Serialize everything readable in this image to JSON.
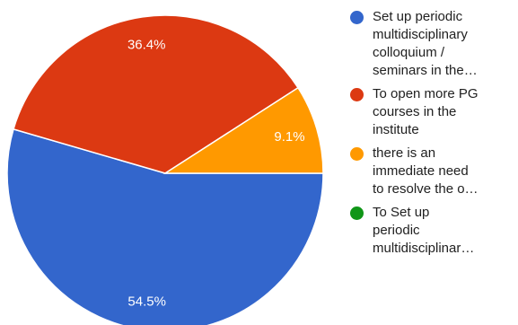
{
  "colors": {
    "series": [
      "#3366cc",
      "#dc3912",
      "#ff9900",
      "#109618"
    ],
    "label_text": "#ffffff",
    "legend_text": "#212121",
    "background": "#ffffff"
  },
  "legend": {
    "items": [
      {
        "lines": [
          "Set up periodic",
          "multidisciplinary",
          "colloquium /",
          "seminars in the…"
        ]
      },
      {
        "lines": [
          "To open more PG",
          "courses in the",
          "institute"
        ]
      },
      {
        "lines": [
          "there is an",
          "immediate need",
          "to resolve the o…"
        ]
      },
      {
        "lines": [
          "To Set up",
          "periodic",
          "multidisciplinar…"
        ]
      }
    ]
  },
  "chart_data": {
    "type": "pie",
    "categories": [
      "Set up periodic multidisciplinary colloquium / seminars in the…",
      "To open more PG courses in the institute",
      "there is an immediate need to resolve the o…",
      "To Set up periodic multidisciplinar…"
    ],
    "values": [
      54.5,
      36.4,
      9.1,
      0
    ],
    "labels": [
      "54.5%",
      "36.4%",
      "9.1%",
      ""
    ],
    "start": "3 o'clock, clockwise",
    "legend_position": "right"
  }
}
